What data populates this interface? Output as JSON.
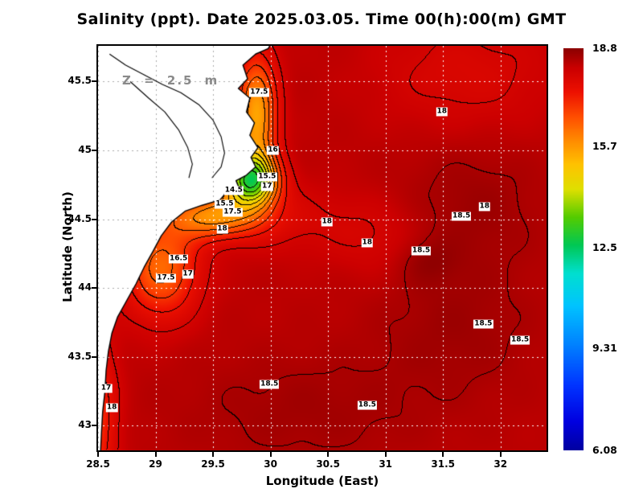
{
  "title": "Salinity (ppt). Date 2025.03.05. Time 00(h):00(m) GMT",
  "depth_label": "Z = 2.5 m",
  "axes": {
    "x_label": "Longitude (East)",
    "y_label": "Latitude (North)",
    "x_ticks": [
      {
        "label": "28.5",
        "value": 28.5
      },
      {
        "label": "29",
        "value": 29
      },
      {
        "label": "29.5",
        "value": 29.5
      },
      {
        "label": "30",
        "value": 30
      },
      {
        "label": "30.5",
        "value": 30.5
      },
      {
        "label": "31",
        "value": 31
      },
      {
        "label": "31.5",
        "value": 31.5
      },
      {
        "label": "32",
        "value": 32
      }
    ],
    "y_ticks": [
      {
        "label": "43",
        "value": 43
      },
      {
        "label": "43.5",
        "value": 43.5
      },
      {
        "label": "44",
        "value": 44
      },
      {
        "label": "44.5",
        "value": 44.5
      },
      {
        "label": "45",
        "value": 45
      },
      {
        "label": "45.5",
        "value": 45.5
      }
    ]
  },
  "colorbar": {
    "labels": [
      {
        "label": "18.8",
        "value": 18.8
      },
      {
        "label": "15.7",
        "value": 15.7
      },
      {
        "label": "12.5",
        "value": 12.5
      },
      {
        "label": "9.31",
        "value": 9.31
      },
      {
        "label": "6.08",
        "value": 6.08
      }
    ]
  },
  "chart_data": {
    "type": "heatmap",
    "title": "Salinity (ppt). Date 2025.03.05. Time 00(h):00(m) GMT",
    "variable": "Salinity",
    "units": "ppt",
    "date": "2025.03.05",
    "time": "00(h):00(m) GMT",
    "depth": "Z = 2.5 m",
    "xlabel": "Longitude (East)",
    "ylabel": "Latitude (North)",
    "x_range": [
      28.5,
      32.4
    ],
    "y_range": [
      42.82,
      45.76
    ],
    "value_range": [
      6.08,
      18.8
    ],
    "contour_interval": 0.5,
    "grid": true,
    "legend_position": "right-colorbar",
    "labeled_contour_levels": [
      "14.5",
      "15.5",
      "16",
      "16.5",
      "17",
      "17.5",
      "18",
      "18.5"
    ],
    "colormap": [
      [
        0.0,
        "#0000a0"
      ],
      [
        0.07,
        "#0000e0"
      ],
      [
        0.16,
        "#0033ff"
      ],
      [
        0.26,
        "#0080ff"
      ],
      [
        0.36,
        "#00c4ff"
      ],
      [
        0.44,
        "#00e0d0"
      ],
      [
        0.51,
        "#00c855"
      ],
      [
        0.58,
        "#55cc00"
      ],
      [
        0.65,
        "#e0e000"
      ],
      [
        0.71,
        "#ffc300"
      ],
      [
        0.77,
        "#ff8c00"
      ],
      [
        0.83,
        "#ff4e00"
      ],
      [
        0.89,
        "#ee1100"
      ],
      [
        0.95,
        "#cc0000"
      ],
      [
        1.0,
        "#8b0000"
      ]
    ],
    "field_model": {
      "background": 18.32,
      "ripple": 0.03,
      "gaussians": [
        {
          "lon": 29.82,
          "lat": 44.78,
          "sx": 0.16,
          "sy": 0.13,
          "amp": -4.8
        },
        {
          "lon": 29.88,
          "lat": 45.25,
          "sx": 0.12,
          "sy": 0.3,
          "amp": -2.8
        },
        {
          "lon": 29.5,
          "lat": 44.52,
          "sx": 0.28,
          "sy": 0.11,
          "amp": -2.3
        },
        {
          "lon": 29.05,
          "lat": 44.15,
          "sx": 0.22,
          "sy": 0.25,
          "amp": -2.0
        },
        {
          "lon": 28.45,
          "lat": 43.05,
          "sx": 0.14,
          "sy": 0.4,
          "amp": -1.5
        },
        {
          "lon": 31.7,
          "lat": 45.55,
          "sx": 0.55,
          "sy": 0.3,
          "amp": -0.45
        },
        {
          "lon": 31.75,
          "lat": 44.6,
          "sx": 0.45,
          "sy": 0.35,
          "amp": 0.3
        },
        {
          "lon": 31.6,
          "lat": 43.7,
          "sx": 0.5,
          "sy": 0.35,
          "amp": 0.28
        },
        {
          "lon": 30.3,
          "lat": 43.1,
          "sx": 0.75,
          "sy": 0.3,
          "amp": 0.26
        },
        {
          "lon": 30.95,
          "lat": 44.35,
          "sx": 0.3,
          "sy": 0.2,
          "amp": -0.35
        },
        {
          "lon": 31.35,
          "lat": 44.2,
          "sx": 0.18,
          "sy": 0.12,
          "amp": 0.32
        },
        {
          "lon": 30.1,
          "lat": 44.5,
          "sx": 0.45,
          "sy": 0.18,
          "amp": -0.4
        }
      ]
    },
    "coastline": [
      [
        30.05,
        45.85
      ],
      [
        29.98,
        45.74
      ],
      [
        29.87,
        45.7
      ],
      [
        29.76,
        45.62
      ],
      [
        29.8,
        45.52
      ],
      [
        29.72,
        45.45
      ],
      [
        29.82,
        45.38
      ],
      [
        29.79,
        45.28
      ],
      [
        29.86,
        45.2
      ],
      [
        29.82,
        45.11
      ],
      [
        29.89,
        45.02
      ],
      [
        29.83,
        44.95
      ],
      [
        29.87,
        44.88
      ],
      [
        29.79,
        44.82
      ],
      [
        29.7,
        44.78
      ],
      [
        29.73,
        44.72
      ],
      [
        29.62,
        44.7
      ],
      [
        29.56,
        44.64
      ],
      [
        29.4,
        44.6
      ],
      [
        29.26,
        44.56
      ],
      [
        29.14,
        44.48
      ],
      [
        29.05,
        44.38
      ],
      [
        28.98,
        44.27
      ],
      [
        28.9,
        44.15
      ],
      [
        28.83,
        44.03
      ],
      [
        28.75,
        43.91
      ],
      [
        28.67,
        43.79
      ],
      [
        28.62,
        43.67
      ],
      [
        28.59,
        43.54
      ],
      [
        28.57,
        43.4
      ],
      [
        28.56,
        43.25
      ],
      [
        28.54,
        43.1
      ],
      [
        28.53,
        42.95
      ],
      [
        28.52,
        42.78
      ]
    ],
    "inland_lines": [
      [
        [
          28.6,
          45.7
        ],
        [
          28.74,
          45.62
        ],
        [
          28.9,
          45.55
        ],
        [
          29.06,
          45.48
        ],
        [
          29.22,
          45.42
        ],
        [
          29.38,
          45.33
        ],
        [
          29.5,
          45.22
        ],
        [
          29.57,
          45.1
        ],
        [
          29.6,
          44.98
        ],
        [
          29.57,
          44.88
        ],
        [
          29.49,
          44.8
        ]
      ],
      [
        [
          28.78,
          45.5
        ],
        [
          28.94,
          45.38
        ],
        [
          29.08,
          45.28
        ],
        [
          29.2,
          45.15
        ],
        [
          29.28,
          45.02
        ],
        [
          29.32,
          44.9
        ],
        [
          29.29,
          44.8
        ]
      ]
    ],
    "contour_labels": [
      {
        "v": "17.5",
        "lon": 29.9,
        "lat": 45.42
      },
      {
        "v": "16",
        "lon": 30.02,
        "lat": 45.0
      },
      {
        "v": "15.5",
        "lon": 29.97,
        "lat": 44.81
      },
      {
        "v": "17",
        "lon": 29.97,
        "lat": 44.74
      },
      {
        "v": "14.5",
        "lon": 29.68,
        "lat": 44.71
      },
      {
        "v": "15.5",
        "lon": 29.6,
        "lat": 44.61
      },
      {
        "v": "17.5",
        "lon": 29.67,
        "lat": 44.55
      },
      {
        "v": "18",
        "lon": 29.58,
        "lat": 44.43
      },
      {
        "v": "18",
        "lon": 30.49,
        "lat": 44.48
      },
      {
        "v": "18",
        "lon": 31.49,
        "lat": 45.28
      },
      {
        "v": "18.5",
        "lon": 31.66,
        "lat": 44.52
      },
      {
        "v": "18",
        "lon": 31.86,
        "lat": 44.59
      },
      {
        "v": "18.5",
        "lon": 31.31,
        "lat": 44.27
      },
      {
        "v": "18",
        "lon": 30.84,
        "lat": 44.33
      },
      {
        "v": "16.5",
        "lon": 29.2,
        "lat": 44.21
      },
      {
        "v": "17",
        "lon": 29.28,
        "lat": 44.1
      },
      {
        "v": "17.5",
        "lon": 29.09,
        "lat": 44.07
      },
      {
        "v": "18.5",
        "lon": 31.85,
        "lat": 43.74
      },
      {
        "v": "18.5",
        "lon": 32.17,
        "lat": 43.62
      },
      {
        "v": "18.5",
        "lon": 29.99,
        "lat": 43.3
      },
      {
        "v": "18.5",
        "lon": 30.84,
        "lat": 43.15
      },
      {
        "v": "17",
        "lon": 28.57,
        "lat": 43.27
      },
      {
        "v": "18",
        "lon": 28.62,
        "lat": 43.13
      }
    ]
  }
}
